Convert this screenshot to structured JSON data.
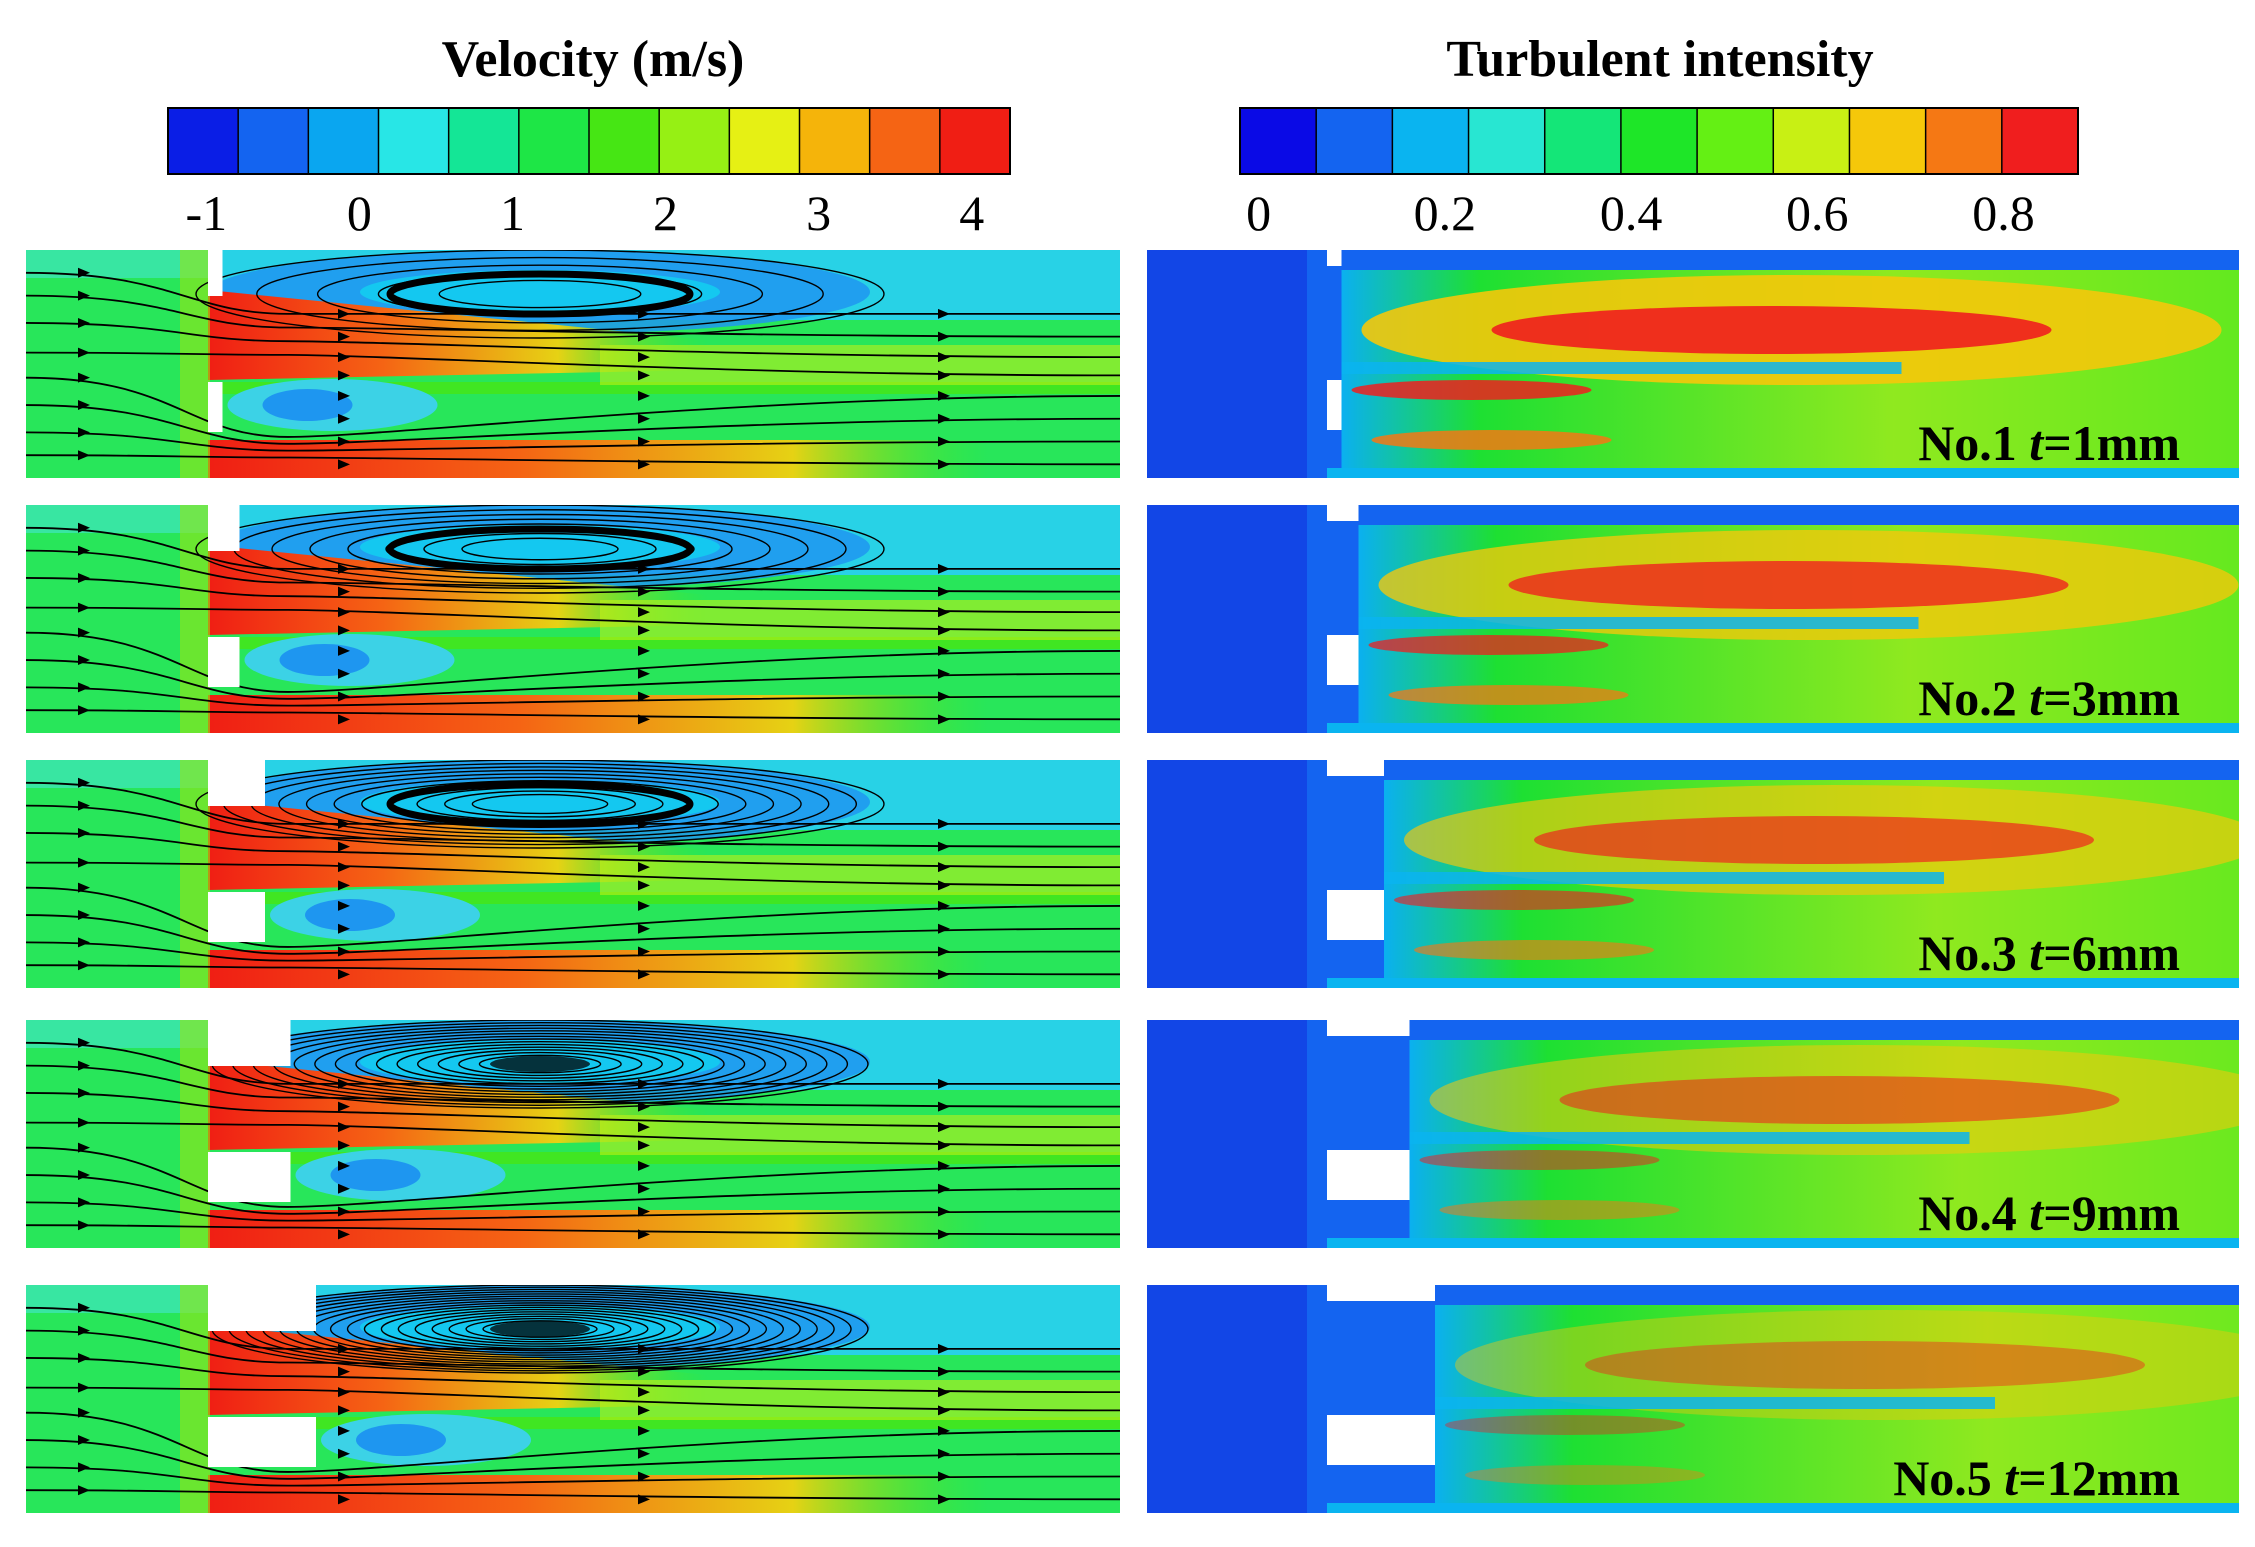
{
  "figure": {
    "velocity_title": "Velocity (m/s)",
    "turbulence_title": "Turbulent intensity"
  },
  "colorbars": {
    "velocity": {
      "ticks": [
        "-1",
        "0",
        "1",
        "2",
        "3",
        "4"
      ],
      "tick_values": [
        -1,
        0,
        1,
        2,
        3,
        4
      ],
      "range": [
        -1.25,
        4.25
      ],
      "colors": [
        "#0a1ee6",
        "#1464f0",
        "#0aa6f0",
        "#28e6e6",
        "#14e696",
        "#1ee646",
        "#46e614",
        "#96f014",
        "#e6f014",
        "#f5b40a",
        "#f56414",
        "#f01e14"
      ]
    },
    "turbulence": {
      "ticks": [
        "0",
        "0.2",
        "0.4",
        "0.6",
        "0.8"
      ],
      "tick_values": [
        0,
        0.2,
        0.4,
        0.6,
        0.8
      ],
      "range": [
        -0.02,
        0.88
      ],
      "colors": [
        "#0a0ae6",
        "#1464f0",
        "#0ab4f0",
        "#28e6d2",
        "#14e678",
        "#1ee628",
        "#64f014",
        "#c8f014",
        "#f5c80a",
        "#f57814",
        "#f01e1e"
      ]
    }
  },
  "colors": {
    "v_neg": "#1464f0",
    "v_low": "#14c8f0",
    "v_base": "#28e65a",
    "v_mid": "#46e614",
    "v_high": "#e6f014",
    "v_max": "#f01e14",
    "v_orange": "#f56414",
    "t_low": "#1464f0",
    "t_mid": "#1ee628",
    "t_high": "#f5c80a",
    "t_max": "#f01e1e"
  },
  "chart_data": {
    "type": "heatmap",
    "description_panels": "Velocity contours with streamlines (left) and turbulent intensity contours (right) for five orifice thicknesses",
    "cases": [
      {
        "label": "No.1",
        "t_label": "t",
        "t_value": "=1mm",
        "thickness_mm": 1
      },
      {
        "label": "No.2",
        "t_label": "t",
        "t_value": "=3mm",
        "thickness_mm": 3
      },
      {
        "label": "No.3",
        "t_label": "t",
        "t_value": "=6mm",
        "thickness_mm": 6
      },
      {
        "label": "No.4",
        "t_label": "t",
        "t_value": "=9mm",
        "thickness_mm": 9
      },
      {
        "label": "No.5",
        "t_label": "t",
        "t_value": "=12mm",
        "thickness_mm": 12
      }
    ]
  }
}
